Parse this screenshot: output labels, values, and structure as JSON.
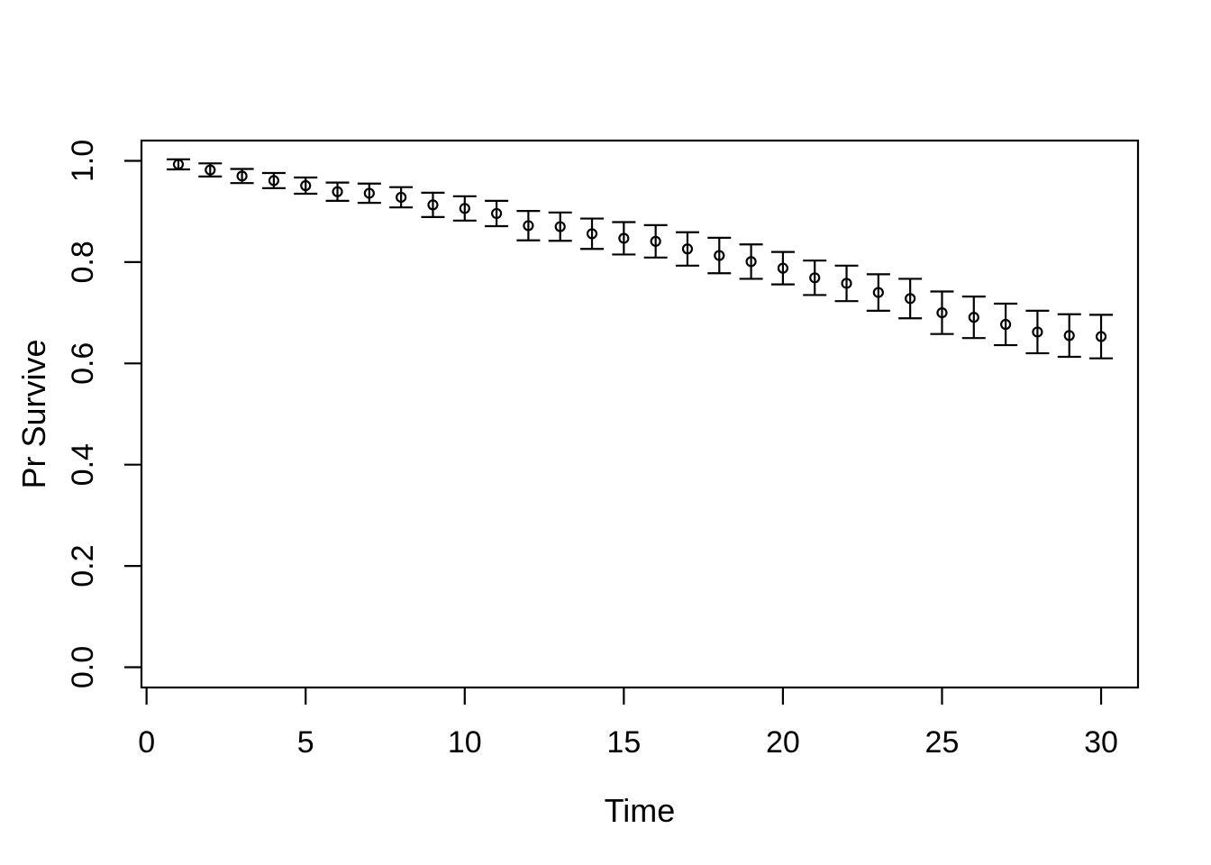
{
  "figure": {
    "background_color": "#ffffff",
    "stroke_color": "#000000"
  },
  "chart_data": {
    "type": "scatter",
    "title": "",
    "xlabel": "Time",
    "ylabel": "Pr Survive",
    "marker": "open-circle",
    "error_bars": true,
    "grid": false,
    "legend": null,
    "xlim": [
      1,
      30
    ],
    "ylim": [
      0,
      1
    ],
    "x_ticks": [
      {
        "value": 0,
        "label": "0"
      },
      {
        "value": 5,
        "label": "5"
      },
      {
        "value": 10,
        "label": "10"
      },
      {
        "value": 15,
        "label": "15"
      },
      {
        "value": 20,
        "label": "20"
      },
      {
        "value": 25,
        "label": "25"
      },
      {
        "value": 30,
        "label": "30"
      }
    ],
    "y_ticks": [
      {
        "value": 0.0,
        "label": "0.0"
      },
      {
        "value": 0.2,
        "label": "0.2"
      },
      {
        "value": 0.4,
        "label": "0.4"
      },
      {
        "value": 0.6,
        "label": "0.6"
      },
      {
        "value": 0.8,
        "label": "0.8"
      },
      {
        "value": 1.0,
        "label": "1.0"
      }
    ],
    "x": [
      1,
      2,
      3,
      4,
      5,
      6,
      7,
      8,
      9,
      10,
      11,
      12,
      13,
      14,
      15,
      16,
      17,
      18,
      19,
      20,
      21,
      22,
      23,
      24,
      25,
      26,
      27,
      28,
      29,
      30
    ],
    "y": [
      0.993,
      0.982,
      0.97,
      0.961,
      0.951,
      0.939,
      0.936,
      0.928,
      0.913,
      0.906,
      0.896,
      0.872,
      0.87,
      0.856,
      0.847,
      0.841,
      0.826,
      0.813,
      0.801,
      0.788,
      0.769,
      0.758,
      0.74,
      0.728,
      0.7,
      0.691,
      0.677,
      0.662,
      0.655,
      0.653
    ],
    "lower": [
      0.983,
      0.969,
      0.956,
      0.946,
      0.935,
      0.921,
      0.917,
      0.908,
      0.889,
      0.882,
      0.871,
      0.843,
      0.842,
      0.826,
      0.815,
      0.809,
      0.793,
      0.778,
      0.767,
      0.756,
      0.735,
      0.723,
      0.704,
      0.689,
      0.658,
      0.65,
      0.636,
      0.62,
      0.613,
      0.61
    ],
    "upper": [
      1.003,
      0.995,
      0.984,
      0.976,
      0.967,
      0.957,
      0.955,
      0.948,
      0.937,
      0.93,
      0.921,
      0.901,
      0.898,
      0.886,
      0.879,
      0.873,
      0.859,
      0.848,
      0.835,
      0.82,
      0.803,
      0.793,
      0.776,
      0.767,
      0.742,
      0.732,
      0.718,
      0.704,
      0.697,
      0.696
    ]
  }
}
